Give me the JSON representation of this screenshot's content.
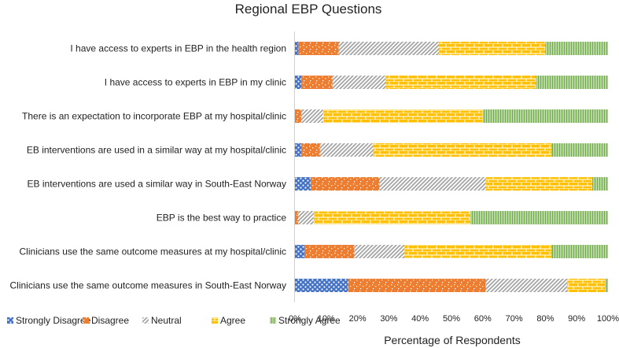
{
  "chart_data": {
    "type": "bar",
    "orientation": "horizontal",
    "stacked": true,
    "title": "Regional EBP Questions",
    "xlabel": "Percentage of Respondents",
    "ylabel": "",
    "xlim": [
      0,
      100
    ],
    "x_ticks": [
      "0%",
      "10%",
      "20%",
      "30%",
      "40%",
      "50%",
      "60%",
      "70%",
      "80%",
      "90%",
      "100%"
    ],
    "grid": false,
    "legend_position": "bottom-left",
    "categories": [
      "I have access to experts in EBP in the health region",
      "I have access to experts in EBP in my clinic",
      "There is an expectation to incorporate EBP at my hospital/clinic",
      "EB interventions are used in a similar way at my hospital/clinic",
      "EB interventions are used a similar way in South-East Norway",
      "EBP is the best way to practice",
      "Clinicians use the same outcome measures at my hospital/clinic",
      "Clinicians use the same outcome measures in South-East Norway"
    ],
    "series": [
      {
        "name": "Strongly Disagree",
        "color": "#4472C4",
        "pattern": "dots",
        "values": [
          1,
          2,
          0,
          2,
          5,
          0,
          3,
          17
        ]
      },
      {
        "name": "Disagree",
        "color": "#ED7D31",
        "pattern": "confetti",
        "values": [
          13,
          10,
          2,
          6,
          22,
          1,
          16,
          44
        ]
      },
      {
        "name": "Neutral",
        "color": "#A5A5A5",
        "pattern": "diagonal",
        "values": [
          32,
          17,
          7,
          17,
          34,
          5,
          16,
          26
        ]
      },
      {
        "name": "Agree",
        "color": "#FFC000",
        "pattern": "brick",
        "values": [
          34,
          48,
          51,
          57,
          34,
          50,
          47,
          12
        ]
      },
      {
        "name": "Strongly Agree",
        "color": "#70AD47",
        "pattern": "vertical",
        "values": [
          20,
          23,
          40,
          18,
          5,
          44,
          18,
          1
        ]
      }
    ]
  }
}
